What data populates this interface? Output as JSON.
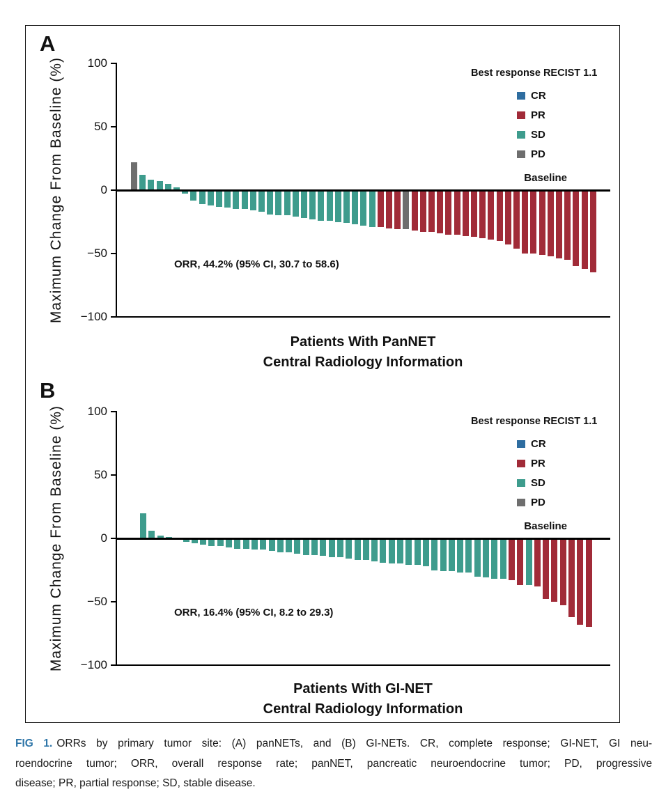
{
  "legend": {
    "title": "Best response RECIST 1.1",
    "items": [
      {
        "label": "CR",
        "color": "#2e6da0"
      },
      {
        "label": "PR",
        "color": "#a12b38"
      },
      {
        "label": "SD",
        "color": "#3e9c8d"
      },
      {
        "label": "PD",
        "color": "#6e6e6e"
      }
    ]
  },
  "chart_data": [
    {
      "type": "bar",
      "panel_label": "A",
      "ylabel": "Maximum Change From Baseline (%)",
      "xlabel_line1": "Patients With PanNET",
      "xlabel_line2": "Central Radiology Information",
      "annotation": "ORR, 44.2% (95% CI, 30.7 to 58.6)",
      "baseline_label": "Baseline",
      "ylim": [
        -100,
        100
      ],
      "yticks": [
        100,
        50,
        0,
        -50,
        -100
      ],
      "grid": false,
      "legend_position": "top-right",
      "bars": [
        {
          "response": "PD",
          "value": 22
        },
        {
          "response": "SD",
          "value": 12
        },
        {
          "response": "SD",
          "value": 8
        },
        {
          "response": "SD",
          "value": 7
        },
        {
          "response": "SD",
          "value": 5
        },
        {
          "response": "SD",
          "value": 2
        },
        {
          "response": "SD",
          "value": -3
        },
        {
          "response": "SD",
          "value": -8
        },
        {
          "response": "SD",
          "value": -11
        },
        {
          "response": "SD",
          "value": -12
        },
        {
          "response": "SD",
          "value": -13
        },
        {
          "response": "SD",
          "value": -14
        },
        {
          "response": "SD",
          "value": -15
        },
        {
          "response": "SD",
          "value": -15
        },
        {
          "response": "SD",
          "value": -16
        },
        {
          "response": "SD",
          "value": -17
        },
        {
          "response": "SD",
          "value": -19
        },
        {
          "response": "SD",
          "value": -20
        },
        {
          "response": "SD",
          "value": -20
        },
        {
          "response": "SD",
          "value": -21
        },
        {
          "response": "SD",
          "value": -22
        },
        {
          "response": "SD",
          "value": -23
        },
        {
          "response": "SD",
          "value": -24
        },
        {
          "response": "SD",
          "value": -24
        },
        {
          "response": "SD",
          "value": -25
        },
        {
          "response": "SD",
          "value": -26
        },
        {
          "response": "SD",
          "value": -27
        },
        {
          "response": "SD",
          "value": -28
        },
        {
          "response": "SD",
          "value": -29
        },
        {
          "response": "PR",
          "value": -29
        },
        {
          "response": "PR",
          "value": -30
        },
        {
          "response": "PR",
          "value": -31
        },
        {
          "response": "PD",
          "value": -31
        },
        {
          "response": "PR",
          "value": -32
        },
        {
          "response": "PR",
          "value": -33
        },
        {
          "response": "PR",
          "value": -33
        },
        {
          "response": "PR",
          "value": -34
        },
        {
          "response": "PR",
          "value": -35
        },
        {
          "response": "PR",
          "value": -35
        },
        {
          "response": "PR",
          "value": -36
        },
        {
          "response": "PR",
          "value": -37
        },
        {
          "response": "PR",
          "value": -38
        },
        {
          "response": "PR",
          "value": -39
        },
        {
          "response": "PR",
          "value": -40
        },
        {
          "response": "PR",
          "value": -43
        },
        {
          "response": "PR",
          "value": -46
        },
        {
          "response": "PR",
          "value": -50
        },
        {
          "response": "PR",
          "value": -50
        },
        {
          "response": "PR",
          "value": -51
        },
        {
          "response": "PR",
          "value": -52
        },
        {
          "response": "PR",
          "value": -54
        },
        {
          "response": "PR",
          "value": -55
        },
        {
          "response": "PR",
          "value": -60
        },
        {
          "response": "PR",
          "value": -62
        },
        {
          "response": "PR",
          "value": -65
        }
      ]
    },
    {
      "type": "bar",
      "panel_label": "B",
      "ylabel": "Maximum Change From Baseline (%)",
      "xlabel_line1": "Patients With GI-NET",
      "xlabel_line2": "Central Radiology Information",
      "annotation": "ORR, 16.4% (95% CI, 8.2 to 29.3)",
      "baseline_label": "Baseline",
      "ylim": [
        -100,
        100
      ],
      "yticks": [
        100,
        50,
        0,
        -50,
        -100
      ],
      "grid": false,
      "legend_position": "top-right",
      "bars": [
        {
          "response": "SD",
          "value": 20
        },
        {
          "response": "SD",
          "value": 6
        },
        {
          "response": "SD",
          "value": 2
        },
        {
          "response": "SD",
          "value": 1
        },
        {
          "response": "SD",
          "value": 0
        },
        {
          "response": "SD",
          "value": -3
        },
        {
          "response": "SD",
          "value": -4
        },
        {
          "response": "SD",
          "value": -5
        },
        {
          "response": "SD",
          "value": -6
        },
        {
          "response": "SD",
          "value": -6
        },
        {
          "response": "SD",
          "value": -7
        },
        {
          "response": "SD",
          "value": -8
        },
        {
          "response": "SD",
          "value": -8
        },
        {
          "response": "SD",
          "value": -9
        },
        {
          "response": "SD",
          "value": -9
        },
        {
          "response": "SD",
          "value": -10
        },
        {
          "response": "SD",
          "value": -11
        },
        {
          "response": "SD",
          "value": -11
        },
        {
          "response": "SD",
          "value": -12
        },
        {
          "response": "SD",
          "value": -13
        },
        {
          "response": "SD",
          "value": -13
        },
        {
          "response": "SD",
          "value": -14
        },
        {
          "response": "SD",
          "value": -15
        },
        {
          "response": "SD",
          "value": -15
        },
        {
          "response": "SD",
          "value": -16
        },
        {
          "response": "SD",
          "value": -17
        },
        {
          "response": "SD",
          "value": -17
        },
        {
          "response": "SD",
          "value": -18
        },
        {
          "response": "SD",
          "value": -19
        },
        {
          "response": "SD",
          "value": -20
        },
        {
          "response": "SD",
          "value": -20
        },
        {
          "response": "SD",
          "value": -21
        },
        {
          "response": "SD",
          "value": -21
        },
        {
          "response": "SD",
          "value": -22
        },
        {
          "response": "SD",
          "value": -25
        },
        {
          "response": "SD",
          "value": -26
        },
        {
          "response": "SD",
          "value": -26
        },
        {
          "response": "SD",
          "value": -27
        },
        {
          "response": "SD",
          "value": -27
        },
        {
          "response": "SD",
          "value": -30
        },
        {
          "response": "SD",
          "value": -31
        },
        {
          "response": "SD",
          "value": -32
        },
        {
          "response": "SD",
          "value": -32
        },
        {
          "response": "PR",
          "value": -33
        },
        {
          "response": "PR",
          "value": -37
        },
        {
          "response": "SD",
          "value": -37
        },
        {
          "response": "PR",
          "value": -38
        },
        {
          "response": "PR",
          "value": -48
        },
        {
          "response": "PR",
          "value": -50
        },
        {
          "response": "PR",
          "value": -53
        },
        {
          "response": "PR",
          "value": -62
        },
        {
          "response": "PR",
          "value": -68
        },
        {
          "response": "PR",
          "value": -70
        }
      ]
    }
  ],
  "caption": {
    "prefix": "FIG 1.",
    "lines": [
      "ORRs by primary tumor site: (A) panNETs, and (B) GI-NETs. CR, complete response; GI-NET, GI neu-",
      "roendocrine tumor; ORR, overall response rate; panNET, pancreatic neuroendocrine tumor; PD, progressive",
      "disease; PR, partial response; SD, stable disease."
    ]
  }
}
